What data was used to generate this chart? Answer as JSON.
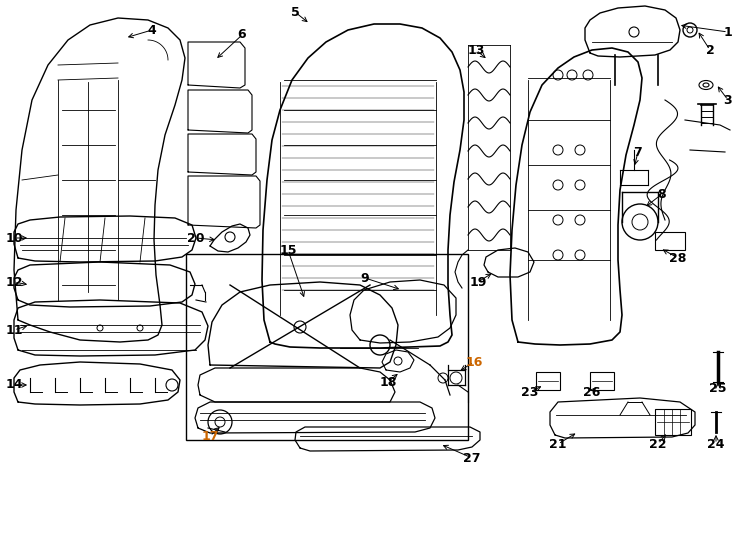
{
  "bg": "#ffffff",
  "lc": "#000000",
  "orange": "#cc6600",
  "figw": 7.34,
  "figh": 5.4,
  "dpi": 100
}
